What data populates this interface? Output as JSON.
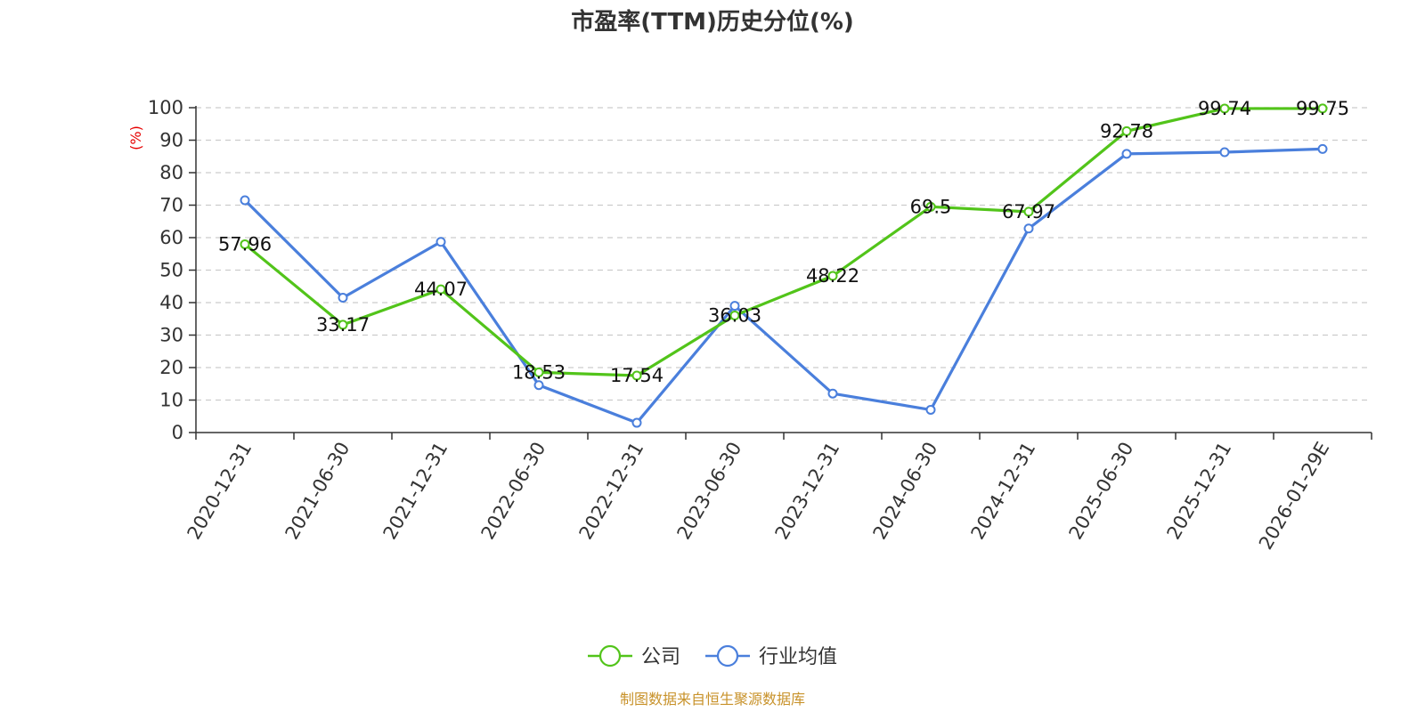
{
  "chart_data": {
    "type": "line",
    "title": "市盈率(TTM)历史分位(%)",
    "ylabel": "(%)",
    "ylim": [
      0,
      100
    ],
    "yticks": [
      0,
      10,
      20,
      30,
      40,
      50,
      60,
      70,
      80,
      90,
      100
    ],
    "grid": true,
    "legend_position": "bottom",
    "categories": [
      "2020-12-31",
      "2021-06-30",
      "2021-12-31",
      "2022-06-30",
      "2022-12-31",
      "2023-06-30",
      "2023-12-31",
      "2024-06-30",
      "2024-12-31",
      "2025-06-30",
      "2025-12-31",
      "2026-01-29E"
    ],
    "series": [
      {
        "name": "公司",
        "color": "#52c41a",
        "values": [
          57.96,
          33.17,
          44.07,
          18.53,
          17.54,
          36.03,
          48.22,
          69.5,
          67.97,
          92.78,
          99.74,
          99.75
        ],
        "labels": [
          "57.96",
          "33.17",
          "44.07",
          "18.53",
          "17.54",
          "36.03",
          "48.22",
          "69.5",
          "67.97",
          "92.78",
          "99.74",
          "99.75"
        ]
      },
      {
        "name": "行业均值",
        "color": "#4a7fdc",
        "values": [
          71.5,
          41.5,
          58.7,
          14.6,
          3.0,
          39.0,
          12.0,
          7.0,
          62.8,
          85.8,
          86.3,
          87.3
        ]
      }
    ],
    "source": "制图数据来自恒生聚源数据库",
    "colors": {
      "title": "#333333",
      "ylabel": "#e60000",
      "grid": "#cccccc",
      "axis": "#333333",
      "source": "#c8922a"
    }
  }
}
